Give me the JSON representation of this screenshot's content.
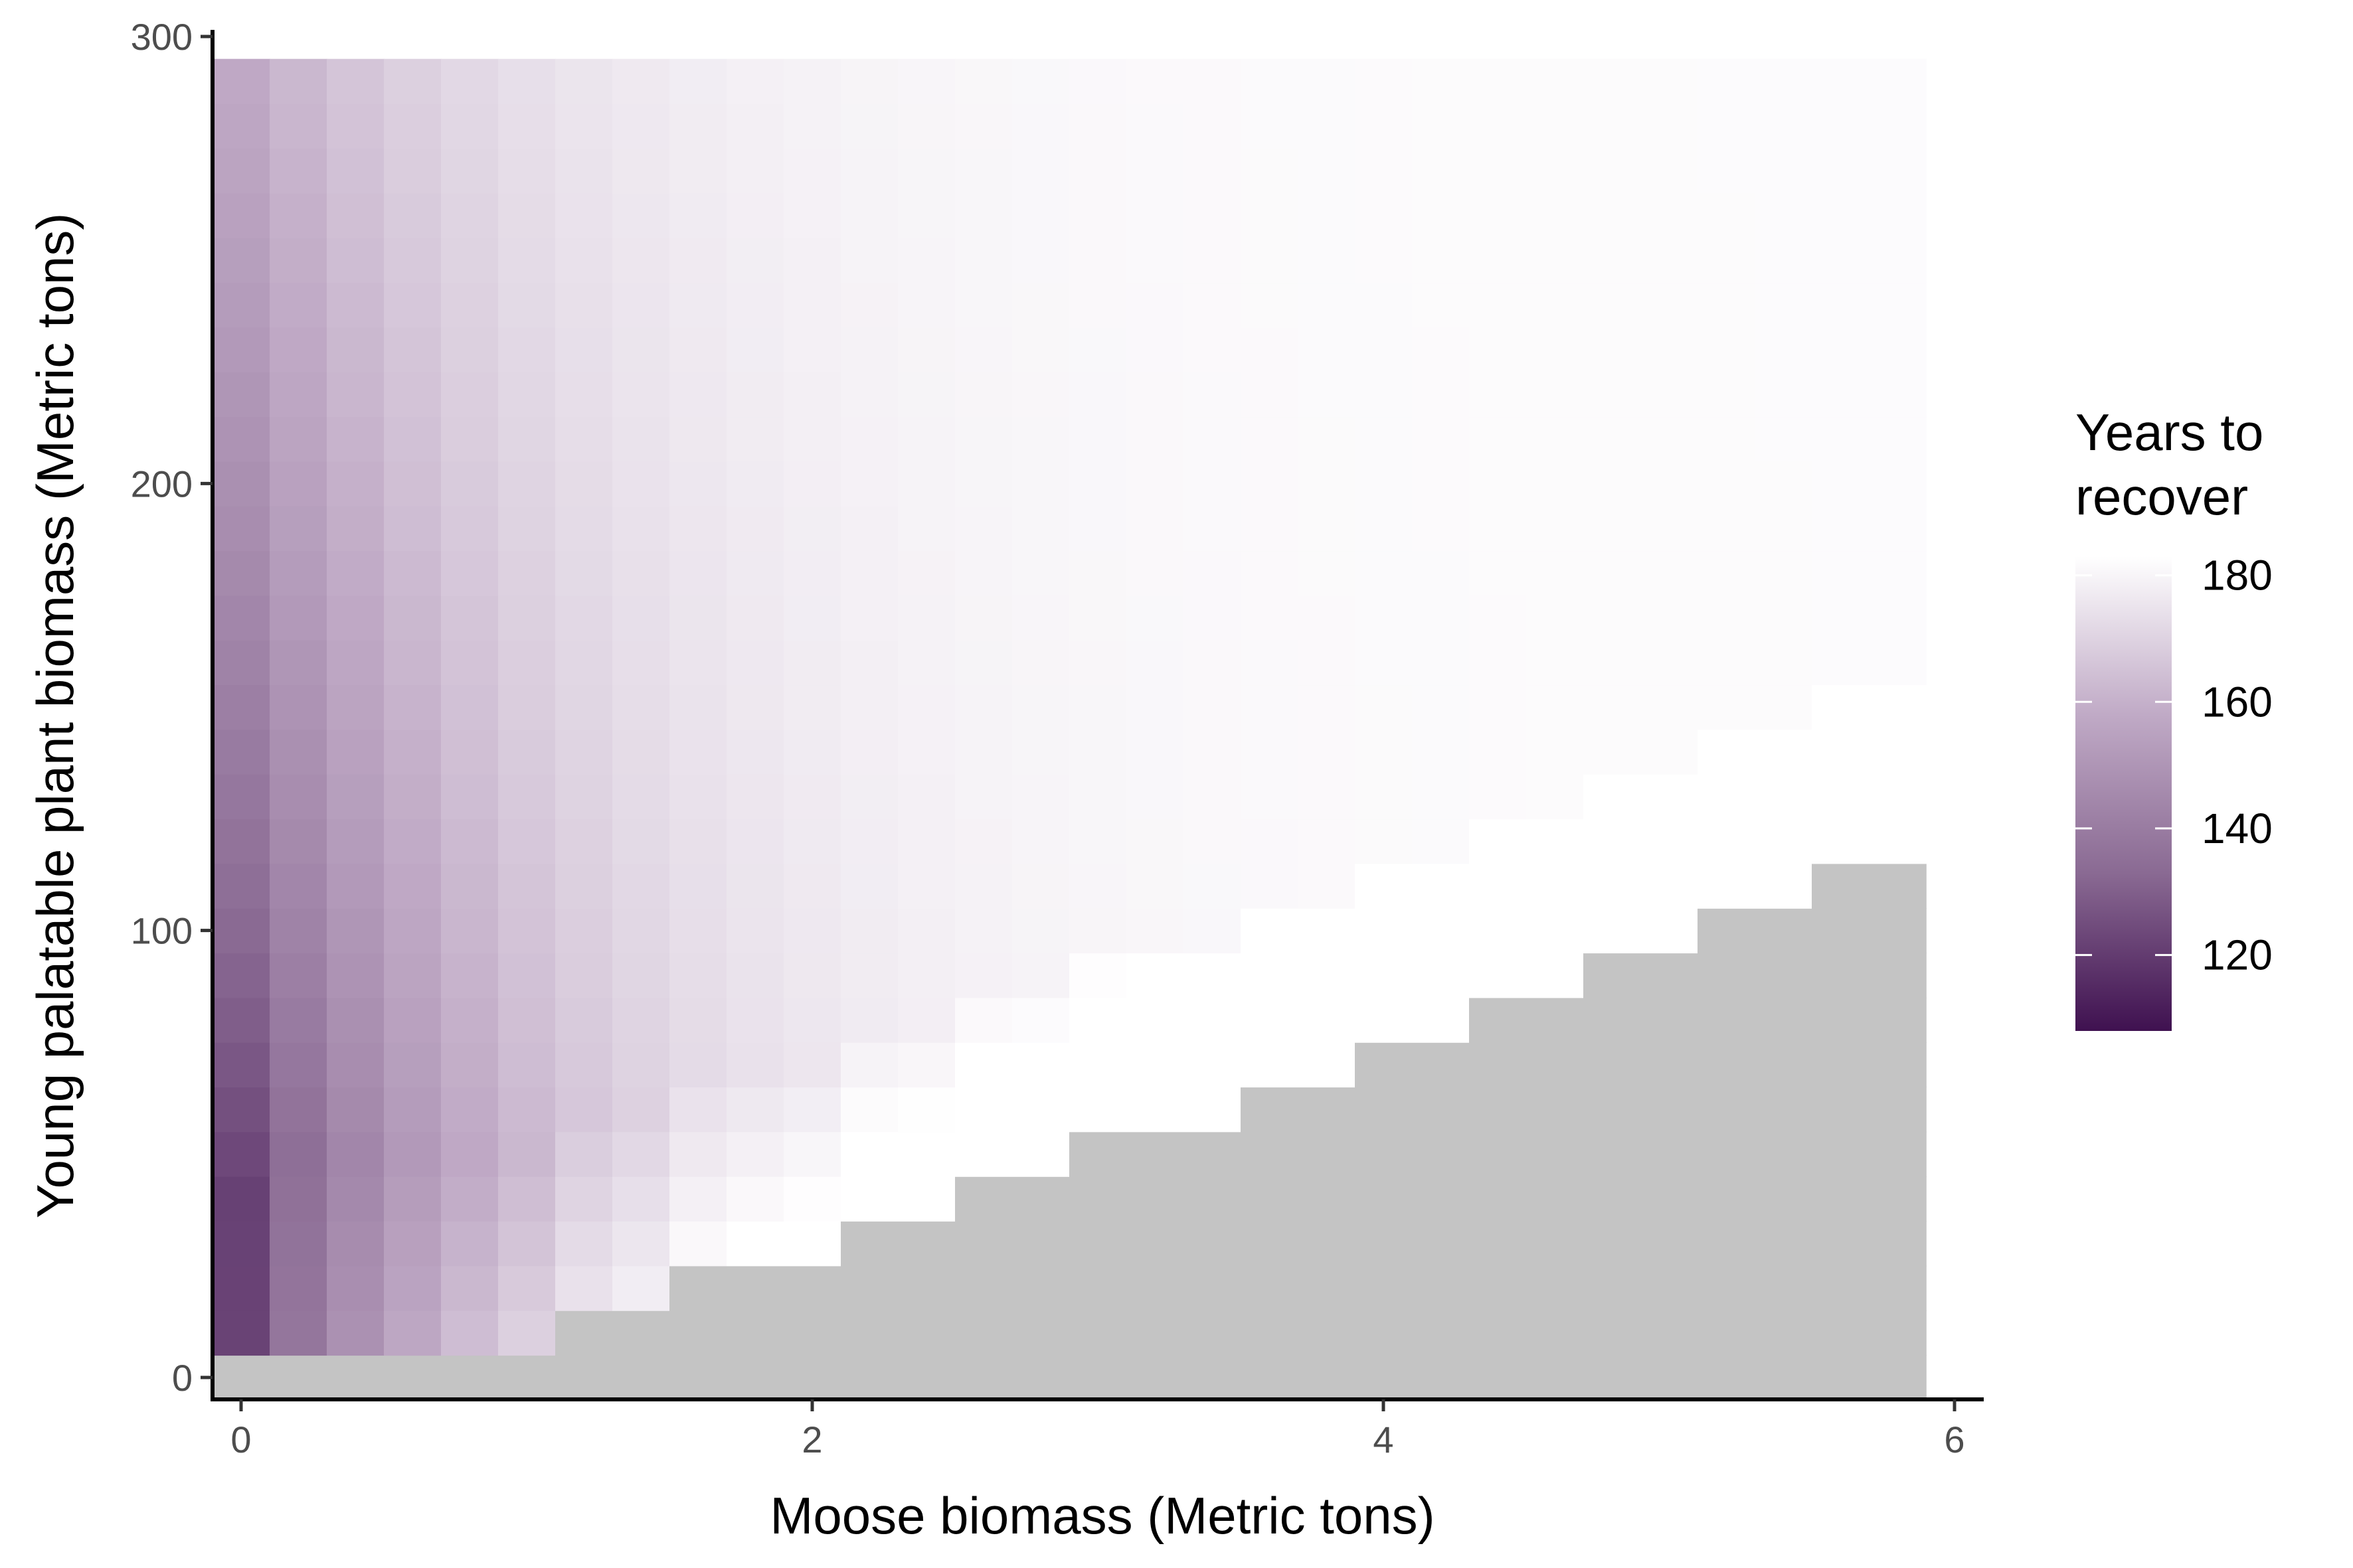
{
  "chart_data": {
    "type": "heatmap",
    "title": "",
    "xlabel": "Moose biomass (Metric tons)",
    "ylabel": "Young palatable plant biomass (Metric tons)",
    "xlim": [
      0,
      6
    ],
    "ylim": [
      0,
      300
    ],
    "x_ticks": [
      "0",
      "2",
      "4",
      "6"
    ],
    "y_ticks": [
      "0",
      "100",
      "200",
      "300"
    ],
    "grid": false,
    "legend": {
      "title": [
        "Years to",
        "recover"
      ],
      "placement": "right",
      "range": [
        108,
        183
      ],
      "ticks": [
        "120",
        "140",
        "160",
        "180"
      ],
      "colors": [
        "#3f1150",
        "#8a6a93",
        "#c0aac6",
        "#ffffff"
      ]
    },
    "no_recovery_color": "#c4c4c4",
    "grid_spec": {
      "x_start": 0,
      "x_step": 0.2,
      "x_count": 30,
      "y_start": 0,
      "y_step": 10,
      "y_count": 30,
      "value_model": "years ≈ 118 + 62·(1 − exp(−(0.12·x + 0.004·y)·2.2)); cells below the feasibility boundary do not recover"
    },
    "cells_no_recovery_boundary_y": [
      0,
      10,
      10,
      10,
      10,
      10,
      20,
      20,
      30,
      30,
      30,
      40,
      40,
      50,
      50,
      60,
      60,
      60,
      70,
      70,
      80,
      80,
      90,
      90,
      100,
      100,
      110,
      110,
      120,
      120
    ]
  }
}
